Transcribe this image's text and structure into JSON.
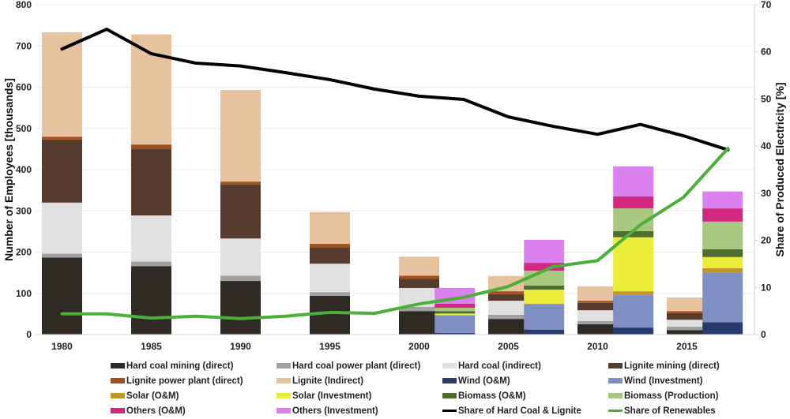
{
  "chart_data": {
    "type": "bar",
    "subtype": "stacked-bar-with-lines",
    "title": "",
    "xlabel": "",
    "ylabel": "Number of Employees [thousands]",
    "y2label": "Share of Produced Electricity [%]",
    "ylim": [
      0,
      800
    ],
    "y2lim": [
      0,
      70
    ],
    "yticks": [
      "0",
      "100",
      "200",
      "300",
      "400",
      "500",
      "600",
      "700",
      "800"
    ],
    "y2ticks": [
      "0",
      "10",
      "20",
      "30",
      "40",
      "50",
      "60",
      "70"
    ],
    "xticks": [
      "1980",
      "1985",
      "1990",
      "1995",
      "2000",
      "2005",
      "2010",
      "2015"
    ],
    "grid": true,
    "legend_position": "bottom",
    "bar_years": [
      1980,
      1985,
      1990,
      1995,
      2000,
      2002,
      2005,
      2007,
      2010,
      2012,
      2015,
      2017
    ],
    "series": [
      {
        "name": "Hard coal mining (direct)",
        "color": "#302a24",
        "values": [
          187,
          166,
          130,
          94,
          57,
          0,
          38,
          0,
          25,
          0,
          11,
          0
        ]
      },
      {
        "name": "Hard coal power plant (direct)",
        "color": "#a0a0a0",
        "values": [
          9,
          11,
          13,
          9,
          10,
          0,
          10,
          0,
          8,
          0,
          8,
          0
        ]
      },
      {
        "name": "Hard coal (indirect)",
        "color": "#e0e0e0",
        "values": [
          124,
          112,
          90,
          69,
          46,
          0,
          34,
          0,
          26,
          0,
          17,
          0
        ]
      },
      {
        "name": "Lignite mining (direct)",
        "color": "#553c2e",
        "values": [
          153,
          162,
          131,
          40,
          22,
          0,
          16,
          0,
          18,
          0,
          16,
          0
        ]
      },
      {
        "name": "Lignite power plant (direct)",
        "color": "#a0501c",
        "values": [
          7,
          10,
          7,
          8,
          8,
          0,
          7,
          0,
          5,
          0,
          5,
          0
        ]
      },
      {
        "name": "Lignite (Indirect)",
        "color": "#e6c29e",
        "values": [
          253,
          267,
          222,
          77,
          46,
          0,
          37,
          0,
          35,
          0,
          33,
          0
        ]
      },
      {
        "name": "Wind (O&M)",
        "color": "#253c6c",
        "values": [
          0,
          0,
          0,
          0,
          0,
          4,
          0,
          12,
          0,
          17,
          0,
          30
        ]
      },
      {
        "name": "Wind (Investment)",
        "color": "#7f8fc4",
        "values": [
          0,
          0,
          0,
          0,
          0,
          42,
          0,
          61,
          0,
          80,
          0,
          120
        ]
      },
      {
        "name": "Solar (O&M)",
        "color": "#c0962a",
        "values": [
          0,
          0,
          0,
          0,
          0,
          1,
          0,
          2,
          0,
          8,
          0,
          11
        ]
      },
      {
        "name": "Solar (Investment)",
        "color": "#ecec3a",
        "values": [
          0,
          0,
          0,
          0,
          0,
          4,
          0,
          34,
          0,
          131,
          0,
          27
        ]
      },
      {
        "name": "Biomass (O&M)",
        "color": "#4e6e2e",
        "values": [
          0,
          0,
          0,
          0,
          0,
          6,
          0,
          10,
          0,
          15,
          0,
          19
        ]
      },
      {
        "name": "Biomass (Production)",
        "color": "#a8c880",
        "values": [
          0,
          0,
          0,
          0,
          0,
          8,
          0,
          36,
          0,
          55,
          0,
          67
        ]
      },
      {
        "name": "Others (O&M)",
        "color": "#d2287f",
        "values": [
          0,
          0,
          0,
          0,
          0,
          10,
          0,
          19,
          0,
          29,
          0,
          32
        ]
      },
      {
        "name": "Others (Investment)",
        "color": "#dd80f0",
        "values": [
          0,
          0,
          0,
          0,
          0,
          38,
          0,
          56,
          0,
          73,
          0,
          41
        ]
      }
    ],
    "lines": [
      {
        "name": "Share of Hard Coal & Lignite",
        "color": "#000000",
        "axis": "y2",
        "x": [
          1980,
          1982.5,
          1985,
          1987.5,
          1990,
          1992.5,
          1995,
          1997.5,
          2000,
          2002.5,
          2005,
          2007.5,
          2010,
          2012.4,
          2014.8,
          2017.3
        ],
        "y": [
          60.6,
          64.8,
          59.6,
          57.6,
          57.0,
          55.6,
          54.1,
          52.1,
          50.6,
          49.9,
          46.2,
          44.2,
          42.5,
          44.6,
          42.2,
          39.2
        ]
      },
      {
        "name": "Share of Renewables",
        "color": "#4caf3a",
        "axis": "y2",
        "x": [
          1980,
          1982.5,
          1985,
          1987.5,
          1990,
          1992.5,
          1995,
          1997.5,
          2000,
          2002.5,
          2005,
          2007.5,
          2010,
          2012.4,
          2014.8,
          2017.3
        ],
        "y": [
          4.4,
          4.4,
          3.5,
          3.9,
          3.4,
          3.9,
          4.7,
          4.5,
          6.5,
          7.9,
          10.2,
          14.4,
          15.7,
          23.3,
          29.1,
          39.5
        ]
      }
    ]
  },
  "legend": [
    {
      "label": "Hard coal mining (direct)",
      "color": "#302a24",
      "kind": "bar"
    },
    {
      "label": "Hard coal power plant (direct)",
      "color": "#a0a0a0",
      "kind": "bar"
    },
    {
      "label": "Hard coal (indirect)",
      "color": "#e0e0e0",
      "kind": "bar"
    },
    {
      "label": "Lignite mining (direct)",
      "color": "#553c2e",
      "kind": "bar"
    },
    {
      "label": "Lignite power plant (direct)",
      "color": "#a0501c",
      "kind": "bar"
    },
    {
      "label": "Lignite (Indirect)",
      "color": "#e6c29e",
      "kind": "bar"
    },
    {
      "label": "Wind (O&M)",
      "color": "#253c6c",
      "kind": "bar"
    },
    {
      "label": "Wind (Investment)",
      "color": "#7f8fc4",
      "kind": "bar"
    },
    {
      "label": "Solar (O&M)",
      "color": "#c0962a",
      "kind": "bar"
    },
    {
      "label": "Solar (Investment)",
      "color": "#ecec3a",
      "kind": "bar"
    },
    {
      "label": "Biomass (O&M)",
      "color": "#4e6e2e",
      "kind": "bar"
    },
    {
      "label": "Biomass (Production)",
      "color": "#a8c880",
      "kind": "bar"
    },
    {
      "label": "Others (O&M)",
      "color": "#d2287f",
      "kind": "bar"
    },
    {
      "label": "Others (Investment)",
      "color": "#dd80f0",
      "kind": "bar"
    },
    {
      "label": "Share of Hard Coal & Lignite",
      "color": "#000000",
      "kind": "line"
    },
    {
      "label": "Share of Renewables",
      "color": "#4caf3a",
      "kind": "line"
    }
  ]
}
